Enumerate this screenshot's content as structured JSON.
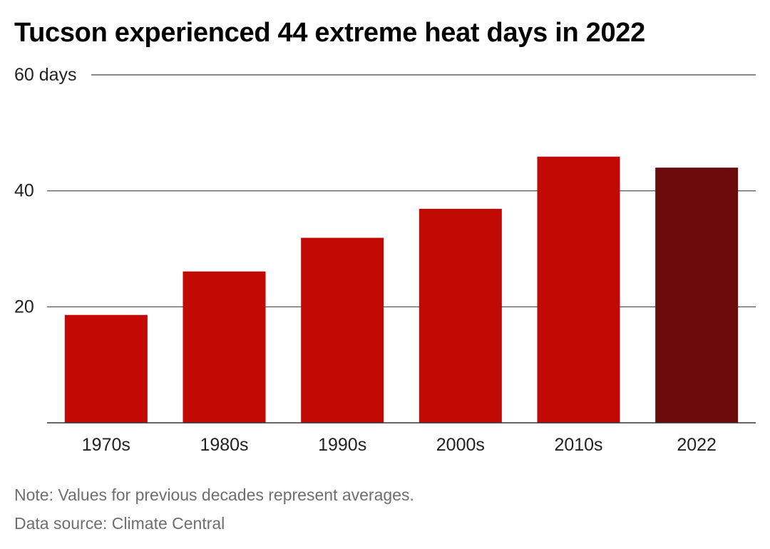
{
  "title": "Tucson experienced 44 extreme heat days in 2022",
  "note": "Note: Values for previous decades represent averages.",
  "source": "Data source: Climate Central",
  "chart_data": {
    "type": "bar",
    "categories": [
      "1970s",
      "1980s",
      "1990s",
      "2000s",
      "2010s",
      "2022"
    ],
    "values": [
      18.6,
      26.1,
      31.9,
      36.9,
      45.9,
      44
    ],
    "highlight_index": 5,
    "colors": {
      "bar": "#c20a04",
      "highlight": "#6b0a0b",
      "grid": "#444444",
      "axis_text": "#222222"
    },
    "ylim": [
      0,
      60
    ],
    "yticks": [
      {
        "value": 20,
        "label": "20"
      },
      {
        "value": 40,
        "label": "40"
      },
      {
        "value": 60,
        "label": "60 days"
      }
    ],
    "grid": true
  }
}
